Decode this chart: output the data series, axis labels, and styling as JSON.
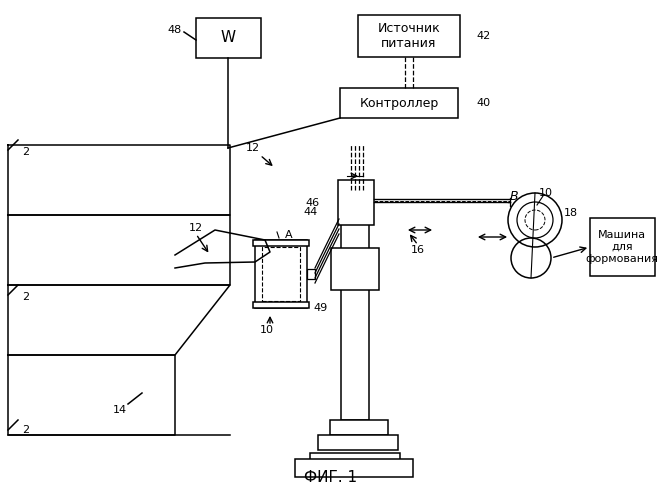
{
  "bg_color": "#ffffff",
  "line_color": "#000000",
  "fig_caption": "ФИГ. 1",
  "labels": {
    "W_box": "W",
    "source_box": "Источник\nпитания",
    "controller_box": "Контроллер",
    "forming_box": "Машина\nдля\nформования",
    "num_48": "48",
    "num_42": "42",
    "num_40": "40",
    "num_12": "12",
    "num_10a": "10",
    "num_10b": "10",
    "num_14": "14",
    "num_16": "16",
    "num_18": "18",
    "num_44": "44",
    "num_46": "46",
    "num_49": "49",
    "labelA": "A",
    "labelB": "B",
    "num_2a": "2",
    "num_2b": "2",
    "num_2c": "2"
  }
}
